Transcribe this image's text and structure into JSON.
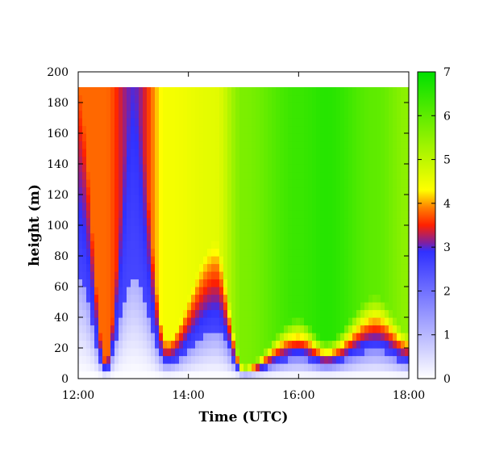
{
  "chart_data": {
    "type": "heatmap",
    "title": "",
    "xlabel": "Time (UTC)",
    "ylabel": "height (m)",
    "xlim": [
      "12:00",
      "18:00"
    ],
    "x_ticks": [
      "12:00",
      "14:00",
      "16:00",
      "18:00"
    ],
    "ylim": [
      0,
      200
    ],
    "y_ticks": [
      0,
      20,
      40,
      60,
      80,
      100,
      120,
      140,
      160,
      180,
      200
    ],
    "data_height_max": 190,
    "colorbar": {
      "range": [
        0,
        7
      ],
      "ticks": [
        0,
        1,
        2,
        3,
        4,
        5,
        6,
        7
      ],
      "colors": [
        {
          "value": 0,
          "color": "#ffffff"
        },
        {
          "value": 2.9,
          "color": "#3030ff"
        },
        {
          "value": 3.1,
          "color": "#8020a0"
        },
        {
          "value": 3.5,
          "color": "#ff2000"
        },
        {
          "value": 3.9,
          "color": "#ff8000"
        },
        {
          "value": 4.3,
          "color": "#ffff00"
        },
        {
          "value": 7,
          "color": "#00e000"
        }
      ]
    },
    "field_model": {
      "background_value": 6.4,
      "description_points": [
        {
          "time_h": 0.0,
          "value_at_top": 3.8,
          "boundary_height": 190
        },
        {
          "time_h": 0.5,
          "value_at_top": 3.8,
          "boundary_height": 12
        },
        {
          "time_h": 1.0,
          "value_at_top": 3.0,
          "boundary_height": 190
        },
        {
          "time_h": 1.6,
          "value_at_top": 4.4,
          "boundary_height": 25
        },
        {
          "time_h": 2.5,
          "value_at_top": 4.6,
          "boundary_height": 90
        },
        {
          "time_h": 3.0,
          "value_at_top": 5.7,
          "boundary_height": 8
        },
        {
          "time_h": 4.0,
          "value_at_top": 6.4,
          "boundary_height": 40
        },
        {
          "time_h": 4.5,
          "value_at_top": 6.6,
          "boundary_height": 25
        },
        {
          "time_h": 5.4,
          "value_at_top": 6.0,
          "boundary_height": 55
        },
        {
          "time_h": 6.0,
          "value_at_top": 5.5,
          "boundary_height": 30
        }
      ]
    }
  }
}
